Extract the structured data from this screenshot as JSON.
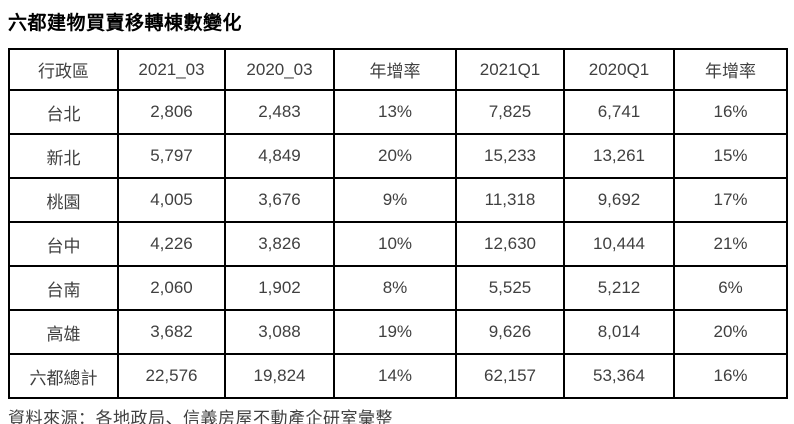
{
  "title": "六都建物買賣移轉棟數變化",
  "table": {
    "columns": [
      "行政區",
      "2021_03",
      "2020_03",
      "年增率",
      "2021Q1",
      "2020Q1",
      "年增率"
    ],
    "rows": [
      {
        "region": "台北",
        "is_total": false,
        "values": [
          "2,806",
          "2,483",
          "13%",
          "7,825",
          "6,741",
          "16%"
        ]
      },
      {
        "region": "新北",
        "is_total": false,
        "values": [
          "5,797",
          "4,849",
          "20%",
          "15,233",
          "13,261",
          "15%"
        ]
      },
      {
        "region": "桃園",
        "is_total": false,
        "values": [
          "4,005",
          "3,676",
          "9%",
          "11,318",
          "9,692",
          "17%"
        ]
      },
      {
        "region": "台中",
        "is_total": false,
        "values": [
          "4,226",
          "3,826",
          "10%",
          "12,630",
          "10,444",
          "21%"
        ]
      },
      {
        "region": "台南",
        "is_total": false,
        "values": [
          "2,060",
          "1,902",
          "8%",
          "5,525",
          "5,212",
          "6%"
        ]
      },
      {
        "region": "高雄",
        "is_total": false,
        "values": [
          "3,682",
          "3,088",
          "19%",
          "9,626",
          "8,014",
          "20%"
        ]
      },
      {
        "region": "六都總計",
        "is_total": true,
        "values": [
          "22,576",
          "19,824",
          "14%",
          "62,157",
          "53,364",
          "16%"
        ]
      }
    ]
  },
  "footer": {
    "source": "資料來源：各地政局、信義房屋不動產企研室彙整"
  },
  "colors": {
    "border": "#000000",
    "body_text": "#404040",
    "title_text": "#000000",
    "background": "#ffffff"
  }
}
